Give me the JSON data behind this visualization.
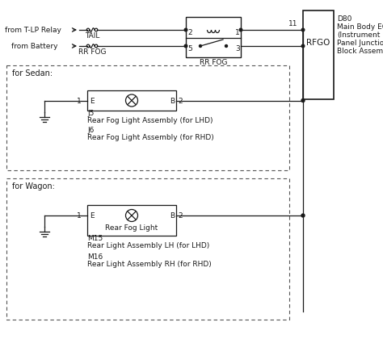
{
  "bg_color": "#ffffff",
  "line_color": "#1a1a1a",
  "dashed_color": "#555555",
  "labels": {
    "from_tlp": "from T-LP Relay",
    "from_bat": "from Battery",
    "tail": "TAIL",
    "rr_fog_fuse": "RR FOG",
    "rr_fog_relay": "RR FOG",
    "rfgo": "RFGO",
    "d80_line1": "D80",
    "d80_line2": "Main Body ECU",
    "d80_line3": "(Instrument",
    "d80_line4": "Panel Junction",
    "d80_line5": "Block Assembly)",
    "sedan_title": "for Sedan:",
    "j5": "J5",
    "j5_desc": "Rear Fog Light Assembly (for LHD)",
    "j6": "J6",
    "j6_desc": "Rear Fog Light Assembly (for RHD)",
    "wagon_title": "for Wagon:",
    "m15": "M15",
    "m15_desc": "Rear Light Assembly LH (for LHD)",
    "m16": "M16",
    "m16_desc": "Rear Light Assembly RH (for RHD)",
    "wagon_light": "Rear Fog Light",
    "node_2": "2",
    "node_1": "1",
    "node_5": "5",
    "node_3": "3",
    "node_11": "11",
    "e_label": "E",
    "b_label": "B",
    "pin_1": "1",
    "pin_2": "2"
  }
}
